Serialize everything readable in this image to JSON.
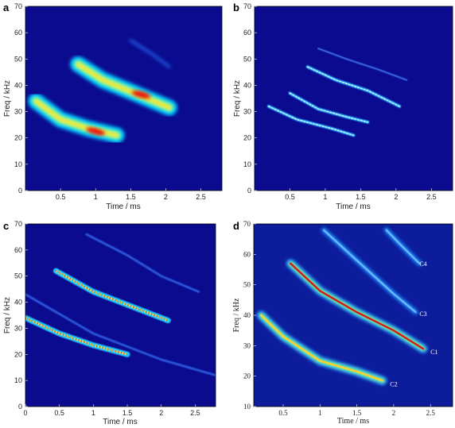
{
  "chart_data": [
    {
      "panel": "a",
      "type": "heatmap",
      "xlabel": "Time / ms",
      "ylabel": "Freq / kHz",
      "xlim": [
        0,
        2.8
      ],
      "ylim": [
        0,
        70
      ],
      "xticks": [
        0.5,
        1,
        1.5,
        2,
        2.5
      ],
      "yticks": [
        0,
        10,
        20,
        30,
        40,
        50,
        60,
        70
      ],
      "background": "#0b0b8f",
      "features": [
        {
          "kind": "lower-harmonic",
          "points": [
            [
              0.15,
              34
            ],
            [
              0.5,
              27
            ],
            [
              0.9,
              23.5
            ],
            [
              1.3,
              21
            ]
          ],
          "peak_time": 1.0,
          "peak_freq": 22.5
        },
        {
          "kind": "upper-harmonic",
          "points": [
            [
              0.75,
              48
            ],
            [
              1.1,
              42
            ],
            [
              1.6,
              36.5
            ],
            [
              2.05,
              31.5
            ]
          ],
          "peak_time": 1.65,
          "peak_freq": 36.5
        },
        {
          "kind": "faint-harmonic",
          "points": [
            [
              1.5,
              57
            ],
            [
              1.8,
              52
            ],
            [
              2.05,
              47
            ]
          ]
        }
      ]
    },
    {
      "panel": "b",
      "type": "heatmap",
      "xlabel": "Time / ms",
      "ylabel": "Freq / kHz",
      "xlim": [
        0,
        2.8
      ],
      "ylim": [
        0,
        70
      ],
      "xticks": [
        0.5,
        1,
        1.5,
        2,
        2.5
      ],
      "yticks": [
        0,
        10,
        20,
        30,
        40,
        50,
        60,
        70
      ],
      "background": "#0b0b8f",
      "features": [
        {
          "kind": "lower-harmonic",
          "points": [
            [
              0.2,
              32
            ],
            [
              0.6,
              27
            ],
            [
              1.1,
              23.5
            ],
            [
              1.4,
              21
            ]
          ]
        },
        {
          "kind": "middle-harmonic",
          "points": [
            [
              0.5,
              37
            ],
            [
              0.9,
              31
            ],
            [
              1.3,
              28
            ],
            [
              1.6,
              26
            ]
          ]
        },
        {
          "kind": "upper-harmonic",
          "points": [
            [
              0.75,
              47
            ],
            [
              1.15,
              42
            ],
            [
              1.6,
              38
            ],
            [
              2.05,
              32
            ]
          ]
        },
        {
          "kind": "faint-harmonic",
          "points": [
            [
              0.9,
              54
            ],
            [
              1.3,
              50
            ],
            [
              1.75,
              46
            ],
            [
              2.15,
              42
            ]
          ]
        }
      ]
    },
    {
      "panel": "c",
      "type": "heatmap",
      "xlabel": "Time / ms",
      "ylabel": "Freq / kHz",
      "xlim": [
        0,
        2.8
      ],
      "ylim": [
        0,
        70
      ],
      "xticks": [
        0,
        0.5,
        1,
        1.5,
        2,
        2.5
      ],
      "yticks": [
        0,
        10,
        20,
        30,
        40,
        50,
        60,
        70
      ],
      "background": "#0b0b8f",
      "features": [
        {
          "kind": "lower-harmonic",
          "points": [
            [
              0.0,
              34
            ],
            [
              0.5,
              28
            ],
            [
              1.0,
              23.5
            ],
            [
              1.5,
              20
            ]
          ]
        },
        {
          "kind": "upper-harmonic",
          "points": [
            [
              0.45,
              52
            ],
            [
              1.0,
              44
            ],
            [
              1.5,
              39
            ],
            [
              2.1,
              33
            ]
          ]
        },
        {
          "kind": "faint-harmonic",
          "points": [
            [
              0.0,
              43
            ],
            [
              1.0,
              28
            ],
            [
              2.0,
              18
            ],
            [
              2.8,
              12
            ]
          ]
        },
        {
          "kind": "faint-harmonic",
          "points": [
            [
              0.9,
              66
            ],
            [
              1.5,
              58
            ],
            [
              2.0,
              50
            ],
            [
              2.55,
              44
            ]
          ]
        }
      ]
    },
    {
      "panel": "d",
      "type": "heatmap",
      "xlabel": "Time / ms",
      "ylabel": "Freq / kHz",
      "xlim": [
        0.1,
        2.8
      ],
      "ylim": [
        10,
        70
      ],
      "xticks": [
        0.5,
        1,
        1.5,
        2,
        2.5
      ],
      "yticks": [
        10,
        20,
        30,
        40,
        50,
        60,
        70
      ],
      "background": "#0c1c9a",
      "annotations": [
        {
          "text": "C1",
          "time": 2.5,
          "freq": 28
        },
        {
          "text": "C2",
          "time": 1.95,
          "freq": 17.5
        },
        {
          "text": "C3",
          "time": 2.35,
          "freq": 40.5
        },
        {
          "text": "C4",
          "time": 2.35,
          "freq": 57
        }
      ],
      "features": [
        {
          "kind": "C2",
          "points": [
            [
              0.2,
              40
            ],
            [
              0.5,
              33
            ],
            [
              1.0,
              25
            ],
            [
              1.5,
              21.5
            ],
            [
              1.85,
              18.5
            ]
          ]
        },
        {
          "kind": "C1",
          "points": [
            [
              0.6,
              57
            ],
            [
              1.0,
              48
            ],
            [
              1.5,
              41
            ],
            [
              2.0,
              35
            ],
            [
              2.4,
              29
            ]
          ]
        },
        {
          "kind": "C3",
          "points": [
            [
              1.05,
              68
            ],
            [
              1.5,
              58
            ],
            [
              2.0,
              47
            ],
            [
              2.3,
              41
            ]
          ]
        },
        {
          "kind": "C4",
          "points": [
            [
              1.9,
              68
            ],
            [
              2.1,
              63
            ],
            [
              2.35,
              57
            ]
          ]
        }
      ]
    }
  ]
}
